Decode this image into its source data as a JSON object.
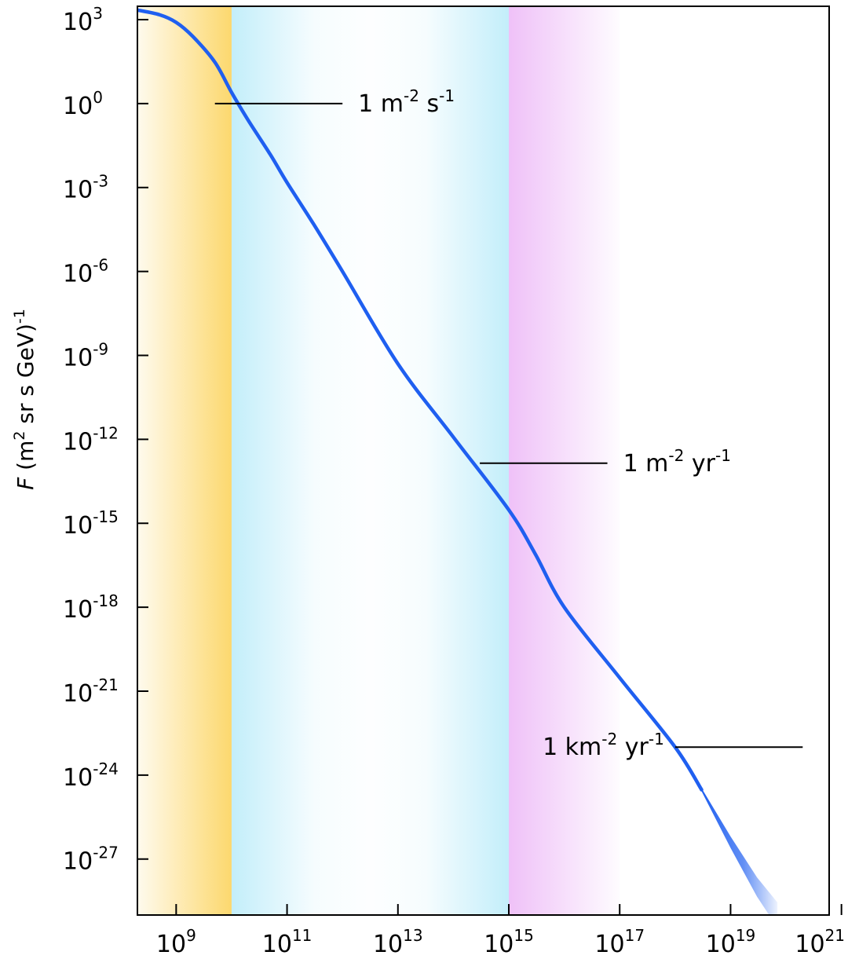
{
  "chart_data": {
    "type": "line",
    "xscale": "log",
    "yscale": "log",
    "xlim": [
      200000000.0,
      6e+20
    ],
    "ylim": [
      1e-29,
      3000.0
    ],
    "ylabel": {
      "italic": "F",
      "text": " (m",
      "sup1": "2",
      "text2": " sr s GeV)",
      "sup2": "-1"
    },
    "x_ticks": [
      {
        "value": 1000000000.0,
        "base": "10",
        "exp": "9"
      },
      {
        "value": 100000000000.0,
        "base": "10",
        "exp": "11"
      },
      {
        "value": 10000000000000.0,
        "base": "10",
        "exp": "13"
      },
      {
        "value": 1000000000000000.0,
        "base": "10",
        "exp": "15"
      },
      {
        "value": 1e+17,
        "base": "10",
        "exp": "17"
      },
      {
        "value": 1e+19,
        "base": "10",
        "exp": "19"
      },
      {
        "value": 1e+21,
        "base": "10",
        "exp": "21"
      }
    ],
    "y_ticks": [
      {
        "value": 1000.0,
        "base": "10",
        "exp": "3"
      },
      {
        "value": 1.0,
        "base": "10",
        "exp": "0"
      },
      {
        "value": 0.001,
        "base": "10",
        "exp": "-3"
      },
      {
        "value": 1e-06,
        "base": "10",
        "exp": "-6"
      },
      {
        "value": 1e-09,
        "base": "10",
        "exp": "-9"
      },
      {
        "value": 1e-12,
        "base": "10",
        "exp": "-12"
      },
      {
        "value": 1e-15,
        "base": "10",
        "exp": "-15"
      },
      {
        "value": 1e-18,
        "base": "10",
        "exp": "-18"
      },
      {
        "value": 1e-21,
        "base": "10",
        "exp": "-21"
      },
      {
        "value": 1e-24,
        "base": "10",
        "exp": "-24"
      },
      {
        "value": 1e-27,
        "base": "10",
        "exp": "-27"
      }
    ],
    "bands": [
      {
        "x_from": 200000000.0,
        "x_to": 10000000000.0,
        "color": "#fcd86e",
        "fade": "toward-low-x"
      },
      {
        "x_from": 10000000000.0,
        "x_to": 1000000000000000.0,
        "color": "#c3eefa",
        "fade": "middle"
      },
      {
        "x_from": 1000000000000000.0,
        "x_to": 1e+17,
        "color": "#efc1f8",
        "fade": "toward-high-x"
      }
    ],
    "series": [
      {
        "color": "#1f5ff0",
        "points": [
          [
            200000000.0,
            2200.0
          ],
          [
            500000000.0,
            1500.0
          ],
          [
            1000000000.0,
            800.0
          ],
          [
            2000000000.0,
            250.0
          ],
          [
            5000000000.0,
            30.0
          ],
          [
            10000000000.0,
            2.5
          ],
          [
            20000000000.0,
            0.25
          ],
          [
            50000000000.0,
            0.015
          ],
          [
            100000000000.0,
            0.0015
          ],
          [
            300000000000.0,
            5e-05
          ],
          [
            1000000000000.0,
            1e-06
          ],
          [
            10000000000000.0,
            5e-10
          ],
          [
            100000000000000.0,
            1.2e-12
          ],
          [
            1000000000000000.0,
            3e-15
          ],
          [
            3000000000000000.0,
            8e-17
          ],
          [
            1e+16,
            1e-18
          ],
          [
            1e+17,
            3e-21
          ],
          [
            1e+18,
            1e-23
          ],
          [
            3e+18,
            3e-25
          ],
          [
            1e+19,
            4e-27
          ],
          [
            3e+19,
            1e-28
          ],
          [
            7e+19,
            1e-29
          ]
        ],
        "uncertainty_from": 3e+18
      }
    ],
    "annotations": [
      {
        "y": 1.0,
        "x_from": 5000000000.0,
        "x_to": 1000000000000.0,
        "text": "1 m",
        "exp1": "-2",
        "mid": " s",
        "exp2": "-1",
        "side": "right"
      },
      {
        "y": 1.4e-13,
        "x_from": 300000000000000.0,
        "x_to": 6e+16,
        "text": "1 m",
        "exp1": "-2",
        "mid": " yr",
        "exp2": "-1",
        "side": "right"
      },
      {
        "y": 1e-23,
        "x_from": 1e+18,
        "x_to": 2e+20,
        "text": "1 km",
        "exp1": "-2",
        "mid": " yr",
        "exp2": "-1",
        "side": "left"
      }
    ],
    "grid": false,
    "legend": "none"
  }
}
